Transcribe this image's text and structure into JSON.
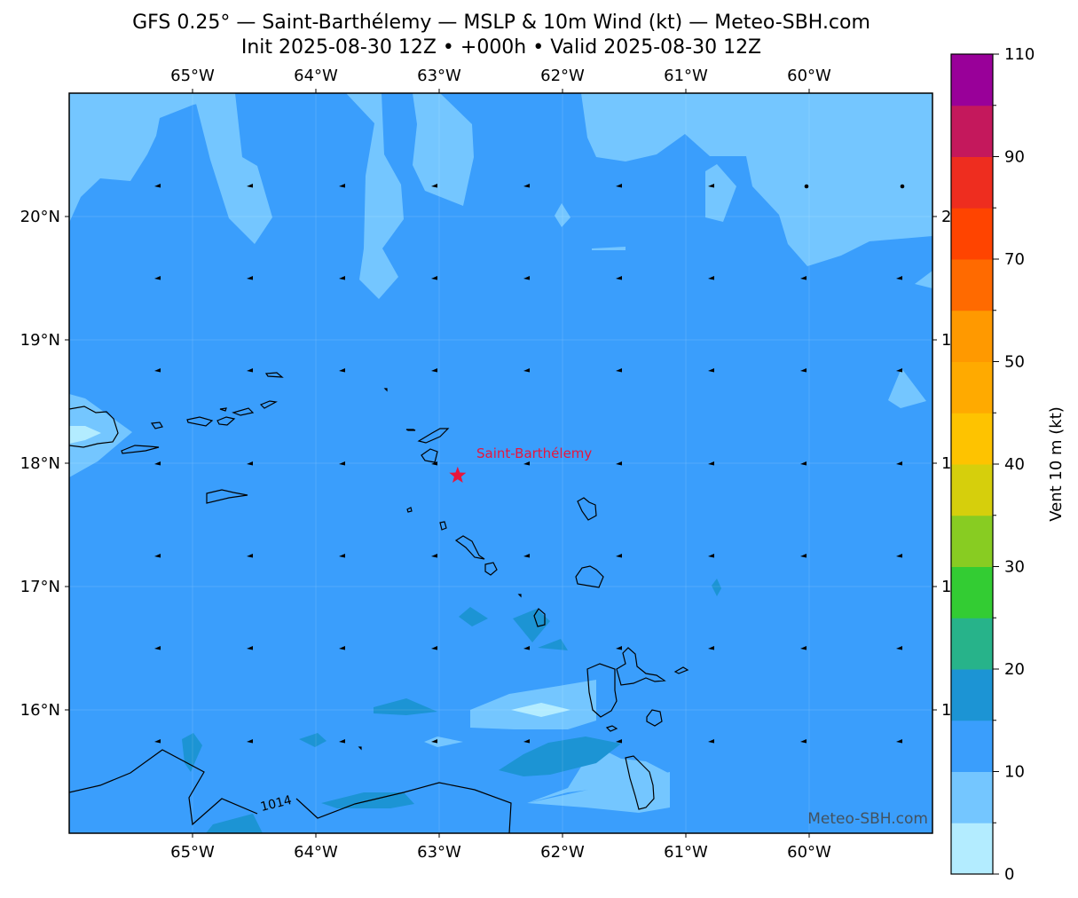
{
  "title_line1": "GFS 0.25° — Saint-Barthélemy — MSLP & 10m Wind (kt) — Meteo-SBH.com",
  "title_line2": "Init 2025-08-30 12Z • +000h • Valid 2025-08-30 12Z",
  "map": {
    "lon_range": [
      -66,
      -59
    ],
    "lat_range": [
      15,
      21
    ],
    "lon_ticks": [
      {
        "lon": -65,
        "label": "65°W"
      },
      {
        "lon": -64,
        "label": "64°W"
      },
      {
        "lon": -63,
        "label": "63°W"
      },
      {
        "lon": -62,
        "label": "62°W"
      },
      {
        "lon": -61,
        "label": "61°W"
      },
      {
        "lon": -60,
        "label": "60°W"
      }
    ],
    "lat_ticks": [
      {
        "lat": 20,
        "label": "20°N"
      },
      {
        "lat": 19,
        "label": "19°N"
      },
      {
        "lat": 18,
        "label": "18°N"
      },
      {
        "lat": 17,
        "label": "17°N"
      },
      {
        "lat": 16,
        "label": "16°N"
      }
    ],
    "marker": {
      "name": "Saint-Barthélemy",
      "lon": -62.85,
      "lat": 17.9,
      "color": "#e8163c"
    },
    "isobar_label": "1014",
    "watermark": "Meteo-SBH.com",
    "background_wind_color": "#3a9efc"
  },
  "colorbar": {
    "label": "Vent 10 m (kt)",
    "range": [
      0,
      110
    ],
    "tick_labels": [
      "0",
      "10",
      "20",
      "30",
      "40",
      "50",
      "70",
      "90",
      "110"
    ],
    "tick_values": [
      0,
      10,
      20,
      30,
      40,
      50,
      70,
      90,
      110
    ],
    "levels": [
      0,
      5,
      10,
      15,
      20,
      25,
      30,
      35,
      40,
      45,
      50,
      60,
      70,
      80,
      90,
      100,
      110
    ],
    "colors": [
      "#b3ecff",
      "#74c6ff",
      "#3a9efc",
      "#1c94d4",
      "#27b38a",
      "#33cc33",
      "#88cc22",
      "#d6cf0c",
      "#fec300",
      "#ffaa00",
      "#ff9900",
      "#ff6a00",
      "#ff4400",
      "#ee2d1f",
      "#c4185c",
      "#990099"
    ]
  }
}
